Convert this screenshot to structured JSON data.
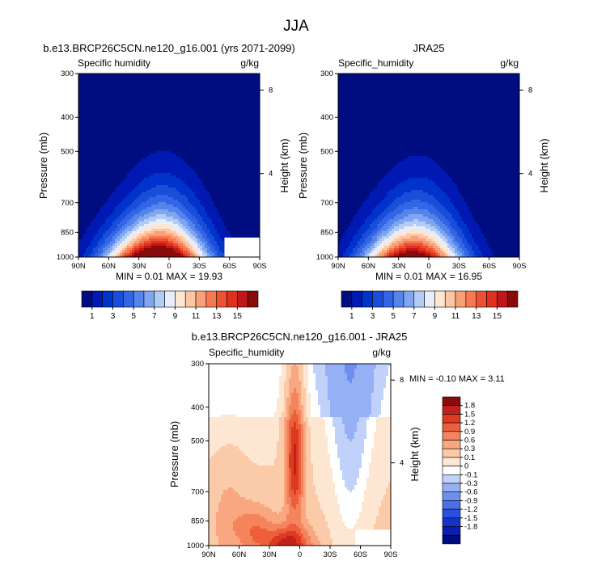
{
  "figure": {
    "title": "JJA"
  },
  "colors": {
    "humidity_scale": [
      "#000d80",
      "#0019b3",
      "#0033cc",
      "#1a4ed9",
      "#3366e6",
      "#5585eb",
      "#80a6f2",
      "#b3ccf7",
      "#e6eefc",
      "#fde6d2",
      "#fcc6a4",
      "#f9a078",
      "#f57a52",
      "#ef5030",
      "#e0301e",
      "#c0171a",
      "#8b0a0a"
    ],
    "diff_scale": [
      "#000d80",
      "#0a1eb0",
      "#1433cc",
      "#2a4fdc",
      "#4a6fe6",
      "#6e8fee",
      "#95b0f4",
      "#c0d2f9",
      "#ffffff",
      "#fde6d2",
      "#fbcaa8",
      "#f8a780",
      "#f3845c",
      "#ec5f3a",
      "#dd3a22",
      "#c2201a",
      "#8b0a0a"
    ]
  },
  "chart_data": [
    {
      "type": "heatmap",
      "panel": "model",
      "title": "b.e13.BRCP26C5CN.ne120_g16.001 (yrs 2071-2099)",
      "left_label": "Specific humidity",
      "units": "g/kg",
      "xlabel": "",
      "ylabel": "Pressure (mb)",
      "y2label": "Height (km)",
      "x_ticks": [
        "90N",
        "60N",
        "30N",
        "0",
        "30S",
        "60S",
        "90S"
      ],
      "y_ticks": [
        "300",
        "400",
        "500",
        "700",
        "850",
        "1000"
      ],
      "y_tick_values": [
        300,
        400,
        500,
        700,
        850,
        1000
      ],
      "y2_ticks": [
        "8",
        "4"
      ],
      "y2_tick_values": [
        8,
        4
      ],
      "xlim": [
        90,
        -90
      ],
      "ylim": [
        1000,
        300
      ],
      "stats": "MIN =  0.01  MAX = 19.93",
      "min": 0.01,
      "max": 19.93,
      "peak_lat": 5,
      "peak_value": 19.93,
      "missing_region": {
        "lat_from": -55,
        "lat_to": -90,
        "p_from": 880,
        "p_to": 1000
      }
    },
    {
      "type": "heatmap",
      "panel": "obs",
      "title": "JRA25",
      "left_label": "Specific_humidity",
      "units": "g/kg",
      "xlabel": "",
      "ylabel": "Pressure (mb)",
      "y2label": "Height (km)",
      "x_ticks": [
        "90N",
        "60N",
        "30N",
        "0",
        "30S",
        "60S",
        "90S"
      ],
      "y_ticks": [
        "300",
        "400",
        "500",
        "700",
        "850",
        "1000"
      ],
      "y_tick_values": [
        300,
        400,
        500,
        700,
        850,
        1000
      ],
      "y2_ticks": [
        "8",
        "4"
      ],
      "y2_tick_values": [
        8,
        4
      ],
      "xlim": [
        90,
        -90
      ],
      "ylim": [
        1000,
        300
      ],
      "stats": "MIN =  0.01  MAX = 16.95",
      "min": 0.01,
      "max": 16.95,
      "peak_lat": 10,
      "peak_value": 16.95
    },
    {
      "type": "heatmap",
      "panel": "difference",
      "title": "b.e13.BRCP26C5CN.ne120_g16.001 - JRA25",
      "left_label": "Specific_humidity",
      "units": "g/kg",
      "xlabel": "",
      "ylabel": "Pressure (mb)",
      "y2label": "Height (km)",
      "x_ticks": [
        "90N",
        "60N",
        "30N",
        "0",
        "30S",
        "60S",
        "90S"
      ],
      "y_ticks": [
        "300",
        "400",
        "500",
        "700",
        "850",
        "1000"
      ],
      "y_tick_values": [
        300,
        400,
        500,
        700,
        850,
        1000
      ],
      "y2_ticks": [
        "8",
        "4"
      ],
      "y2_tick_values": [
        8,
        4
      ],
      "xlim": [
        90,
        -90
      ],
      "ylim": [
        1000,
        300
      ],
      "stats": "MIN = -0.10  MAX =  3.11",
      "min": -0.1,
      "max": 3.11,
      "missing_region": {
        "lat_from": -55,
        "lat_to": -90,
        "p_from": 900,
        "p_to": 1000
      }
    }
  ],
  "legends": {
    "humidity": {
      "ticks": [
        "1",
        "3",
        "5",
        "7",
        "9",
        "11",
        "13",
        "15"
      ]
    },
    "difference": {
      "ticks": [
        "1.8",
        "1.5",
        "1.2",
        "0.9",
        "0.6",
        "0.3",
        "0.1",
        "0",
        "-0.1",
        "-0.3",
        "-0.6",
        "-0.9",
        "-1.2",
        "-1.5",
        "-1.8"
      ]
    }
  }
}
